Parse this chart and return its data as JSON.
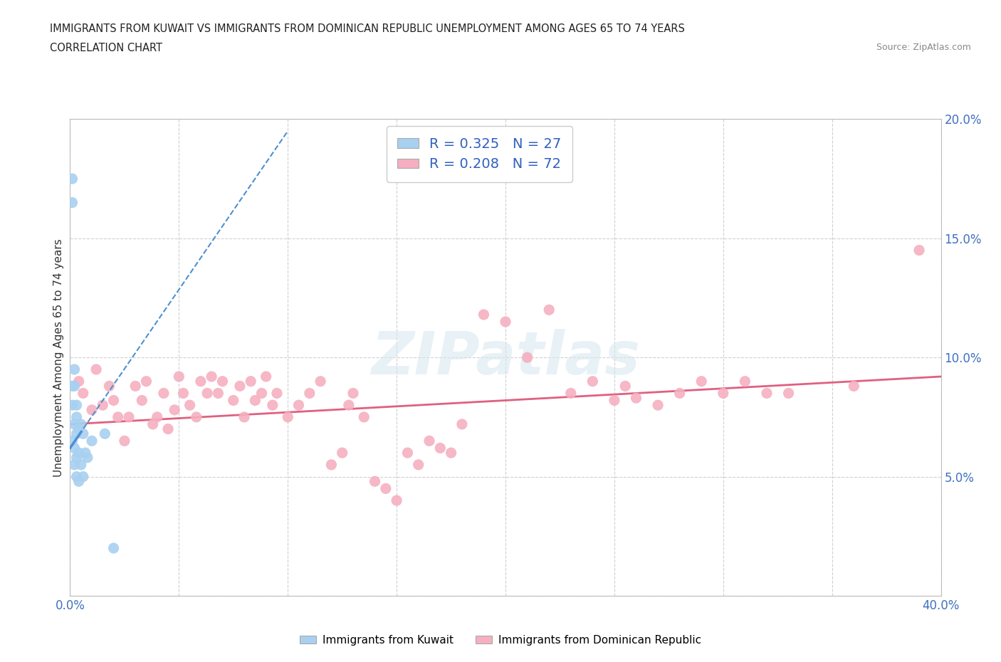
{
  "title_line1": "IMMIGRANTS FROM KUWAIT VS IMMIGRANTS FROM DOMINICAN REPUBLIC UNEMPLOYMENT AMONG AGES 65 TO 74 YEARS",
  "title_line2": "CORRELATION CHART",
  "source_text": "Source: ZipAtlas.com",
  "ylabel": "Unemployment Among Ages 65 to 74 years",
  "watermark": "ZIPatlas",
  "kuwait_R": 0.325,
  "kuwait_N": 27,
  "dr_R": 0.208,
  "dr_N": 72,
  "kuwait_color": "#a8d0f0",
  "dr_color": "#f5afc0",
  "kuwait_trendline_color": "#5090d0",
  "dr_trendline_color": "#e06080",
  "xlim": [
    0.0,
    0.4
  ],
  "ylim": [
    0.0,
    0.2
  ],
  "xticks": [
    0.0,
    0.05,
    0.1,
    0.15,
    0.2,
    0.25,
    0.3,
    0.35,
    0.4
  ],
  "yticks": [
    0.0,
    0.05,
    0.1,
    0.15,
    0.2
  ],
  "kuwait_x": [
    0.001,
    0.001,
    0.001,
    0.001,
    0.001,
    0.002,
    0.002,
    0.002,
    0.002,
    0.002,
    0.003,
    0.003,
    0.003,
    0.003,
    0.003,
    0.004,
    0.004,
    0.004,
    0.005,
    0.005,
    0.006,
    0.006,
    0.007,
    0.008,
    0.01,
    0.016,
    0.02
  ],
  "kuwait_y": [
    0.175,
    0.165,
    0.088,
    0.08,
    0.065,
    0.095,
    0.088,
    0.072,
    0.062,
    0.055,
    0.08,
    0.075,
    0.068,
    0.058,
    0.05,
    0.07,
    0.06,
    0.048,
    0.072,
    0.055,
    0.068,
    0.05,
    0.06,
    0.058,
    0.065,
    0.068,
    0.02
  ],
  "dr_x": [
    0.004,
    0.006,
    0.01,
    0.012,
    0.015,
    0.018,
    0.02,
    0.022,
    0.025,
    0.027,
    0.03,
    0.033,
    0.035,
    0.038,
    0.04,
    0.043,
    0.045,
    0.048,
    0.05,
    0.052,
    0.055,
    0.058,
    0.06,
    0.063,
    0.065,
    0.068,
    0.07,
    0.075,
    0.078,
    0.08,
    0.083,
    0.085,
    0.088,
    0.09,
    0.093,
    0.095,
    0.1,
    0.105,
    0.11,
    0.115,
    0.12,
    0.125,
    0.128,
    0.13,
    0.135,
    0.14,
    0.145,
    0.15,
    0.155,
    0.16,
    0.165,
    0.17,
    0.175,
    0.18,
    0.19,
    0.2,
    0.21,
    0.22,
    0.23,
    0.24,
    0.25,
    0.255,
    0.26,
    0.27,
    0.28,
    0.29,
    0.3,
    0.31,
    0.32,
    0.33,
    0.36,
    0.39
  ],
  "dr_y": [
    0.09,
    0.085,
    0.078,
    0.095,
    0.08,
    0.088,
    0.082,
    0.075,
    0.065,
    0.075,
    0.088,
    0.082,
    0.09,
    0.072,
    0.075,
    0.085,
    0.07,
    0.078,
    0.092,
    0.085,
    0.08,
    0.075,
    0.09,
    0.085,
    0.092,
    0.085,
    0.09,
    0.082,
    0.088,
    0.075,
    0.09,
    0.082,
    0.085,
    0.092,
    0.08,
    0.085,
    0.075,
    0.08,
    0.085,
    0.09,
    0.055,
    0.06,
    0.08,
    0.085,
    0.075,
    0.048,
    0.045,
    0.04,
    0.06,
    0.055,
    0.065,
    0.062,
    0.06,
    0.072,
    0.118,
    0.115,
    0.1,
    0.12,
    0.085,
    0.09,
    0.082,
    0.088,
    0.083,
    0.08,
    0.085,
    0.09,
    0.085,
    0.09,
    0.085,
    0.085,
    0.088,
    0.145
  ],
  "dr_trend_x0": 0.0,
  "dr_trend_y0": 0.072,
  "dr_trend_x1": 0.4,
  "dr_trend_y1": 0.092,
  "kuwait_trend_x0": 0.0,
  "kuwait_trend_y0": 0.062,
  "kuwait_trend_x1": 0.1,
  "kuwait_trend_y1": 0.195
}
